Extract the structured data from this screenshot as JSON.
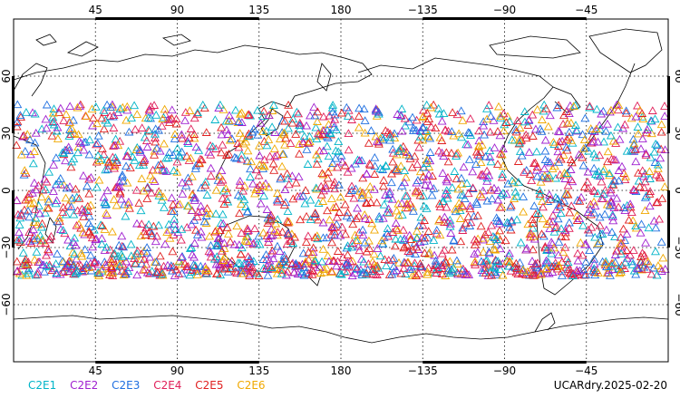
{
  "chart_data": {
    "type": "scatter",
    "title": "",
    "xlabel": "",
    "ylabel": "",
    "projection": "equirectangular",
    "central_longitude": 180,
    "xlim": [
      0,
      360
    ],
    "ylim": [
      -90,
      90
    ],
    "grid": true,
    "marker": "open-triangle",
    "x_ticks": [
      {
        "lon": 45,
        "label": "45"
      },
      {
        "lon": 90,
        "label": "90"
      },
      {
        "lon": 135,
        "label": "135"
      },
      {
        "lon": 180,
        "label": "180"
      },
      {
        "lon": 225,
        "label": "−135"
      },
      {
        "lon": 270,
        "label": "−90"
      },
      {
        "lon": 315,
        "label": "−45"
      }
    ],
    "y_ticks": [
      {
        "lat": 60,
        "label": "60"
      },
      {
        "lat": 30,
        "label": "30"
      },
      {
        "lat": 0,
        "label": "0"
      },
      {
        "lat": -30,
        "label": "−30"
      },
      {
        "lat": -60,
        "label": "−60"
      }
    ],
    "occultation_lat_range": [
      -45,
      45
    ],
    "series": [
      {
        "name": "C2E1",
        "color": "#00b4c8"
      },
      {
        "name": "C2E2",
        "color": "#a020d0"
      },
      {
        "name": "C2E3",
        "color": "#1f6fe0"
      },
      {
        "name": "C2E4",
        "color": "#e0205a"
      },
      {
        "name": "C2E5",
        "color": "#e02020"
      },
      {
        "name": "C2E6",
        "color": "#f0a800"
      }
    ]
  },
  "product_label": "UCARdry.2025-02-20",
  "colors": {
    "coastline": "#000000",
    "frame": "#000000",
    "grid": "#000000"
  }
}
